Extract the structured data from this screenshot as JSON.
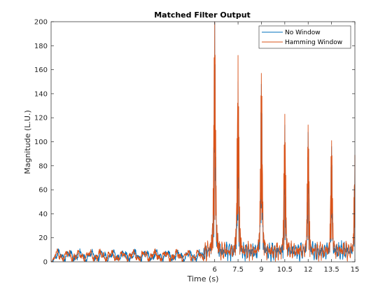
{
  "chart_data": {
    "type": "line",
    "title": "Matched Filter Output",
    "xlabel": "Time (s)",
    "ylabel": "Magnitude (L.U.)",
    "xlim": [
      -4.5,
      15
    ],
    "ylim": [
      0,
      200
    ],
    "xticks": [
      6,
      7.5,
      9,
      10.5,
      12,
      13.5,
      15
    ],
    "yticks": [
      0,
      20,
      40,
      60,
      80,
      100,
      120,
      140,
      160,
      180,
      200
    ],
    "grid": false,
    "legend_position": "top-right",
    "series": [
      {
        "name": "No Window",
        "color": "#0072BD",
        "peaks": [
          {
            "t": 6.0,
            "value": 199
          },
          {
            "t": 7.5,
            "value": 150
          },
          {
            "t": 9.0,
            "value": 148
          },
          {
            "t": 10.5,
            "value": 114
          },
          {
            "t": 12.0,
            "value": 108
          },
          {
            "t": 13.5,
            "value": 96
          },
          {
            "t": 15.0,
            "value": 89
          }
        ]
      },
      {
        "name": "Hamming Window",
        "color": "#D95319",
        "peaks": [
          {
            "t": 6.0,
            "value": 200
          },
          {
            "t": 7.5,
            "value": 172
          },
          {
            "t": 9.0,
            "value": 157
          },
          {
            "t": 10.5,
            "value": 123
          },
          {
            "t": 12.0,
            "value": 114
          },
          {
            "t": 13.5,
            "value": 101
          },
          {
            "t": 15.0,
            "value": 89
          }
        ]
      }
    ],
    "noise_floor": {
      "pre_signal_level": 5,
      "post_signal_level": 10
    }
  }
}
